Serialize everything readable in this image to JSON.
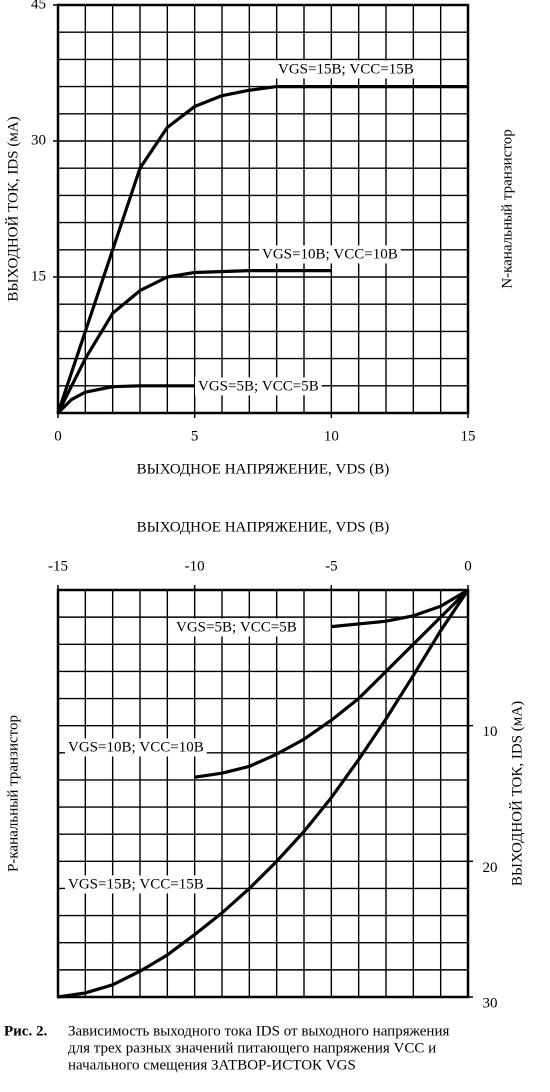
{
  "chart_data": [
    {
      "type": "line",
      "x_label": "ВЫХОДНОЕ НАПРЯЖЕНИЕ, VDS (В)",
      "y_label": "ВЫХОДНОЙ ТОК, IDS (мА)",
      "side_label": "N-канальный транзистор",
      "xlim": [
        0,
        15
      ],
      "ylim": [
        0,
        45
      ],
      "xticks": [
        0,
        5,
        10,
        15
      ],
      "yticks": [
        15,
        30,
        45
      ],
      "xgrid": [
        0,
        1,
        2,
        3,
        4,
        5,
        6,
        7,
        8,
        9,
        10,
        11,
        12,
        13,
        14,
        15
      ],
      "ygrid": [
        0,
        3,
        6,
        9,
        12,
        15,
        18,
        21,
        24,
        27,
        30,
        33,
        36,
        39,
        42,
        45
      ],
      "xaxis_position": "bottom",
      "yaxis_position": "left",
      "y_reversed": false,
      "series": [
        {
          "name": "VGS=15В; VCC=15В",
          "color": "#000000",
          "x": [
            0,
            1,
            2,
            3,
            4,
            5,
            6,
            7,
            8,
            10,
            12,
            15
          ],
          "values": [
            0,
            9,
            18,
            27,
            31.5,
            33.8,
            35,
            35.6,
            36,
            36,
            36,
            36
          ]
        },
        {
          "name": "VGS=10В; VCC=10В",
          "color": "#000000",
          "x": [
            0,
            1,
            2,
            3,
            4,
            5,
            7,
            10
          ],
          "values": [
            0,
            6,
            11,
            13.5,
            15,
            15.5,
            15.7,
            15.7
          ]
        },
        {
          "name": "VGS=5В; VCC=5В",
          "color": "#000000",
          "x": [
            0,
            0.5,
            1,
            2,
            3,
            5
          ],
          "values": [
            0,
            1.5,
            2.3,
            2.9,
            3,
            3
          ]
        }
      ]
    },
    {
      "type": "line",
      "x_label": "ВЫХОДНОЕ НАПРЯЖЕНИЕ, VDS (В)",
      "y_label": "ВЫХОДНОЙ ТОК, IDS (мА)",
      "side_label": "P-канальный транзистор",
      "xlim": [
        -15,
        0
      ],
      "ylim": [
        0,
        30
      ],
      "xticks": [
        -15,
        -10,
        -5,
        0
      ],
      "yticks": [
        10,
        20,
        30
      ],
      "xgrid": [
        -15,
        -14,
        -13,
        -12,
        -11,
        -10,
        -9,
        -8,
        -7,
        -6,
        -5,
        -4,
        -3,
        -2,
        -1,
        0
      ],
      "ygrid": [
        0,
        2,
        4,
        6,
        8,
        10,
        12,
        14,
        16,
        18,
        20,
        22,
        24,
        26,
        28,
        30
      ],
      "xaxis_position": "top",
      "yaxis_position": "right",
      "y_reversed": true,
      "series": [
        {
          "name": "VGS=5В; VCC=5В",
          "color": "#000000",
          "x": [
            0,
            -1,
            -2,
            -3,
            -4,
            -5
          ],
          "values": [
            0,
            1.2,
            1.9,
            2.3,
            2.5,
            2.7
          ]
        },
        {
          "name": "VGS=10В; VCC=10В",
          "color": "#000000",
          "x": [
            0,
            -1,
            -2,
            -3,
            -4,
            -5,
            -6,
            -7,
            -8,
            -9,
            -10
          ],
          "values": [
            0,
            2,
            4,
            6,
            8,
            9.6,
            11,
            12.1,
            13,
            13.5,
            13.8
          ]
        },
        {
          "name": "VGS=15В; VCC=15В",
          "color": "#000000",
          "x": [
            0,
            -1,
            -2,
            -3,
            -4,
            -5,
            -6,
            -7,
            -8,
            -9,
            -10,
            -11,
            -12,
            -13,
            -14,
            -15
          ],
          "values": [
            0,
            3,
            6.3,
            9.5,
            12.5,
            15.3,
            17.8,
            20,
            22,
            23.8,
            25.4,
            26.9,
            28.1,
            29.1,
            29.7,
            30
          ]
        }
      ]
    }
  ],
  "caption": {
    "label": "Рис. 2.",
    "lines": [
      "Зависимость выходного тока IDS от выходного напряжения",
      "для трех разных значений питающего напряжения VCC и",
      "начального смещения ЗАТВОР-ИСТОК VGS"
    ]
  }
}
